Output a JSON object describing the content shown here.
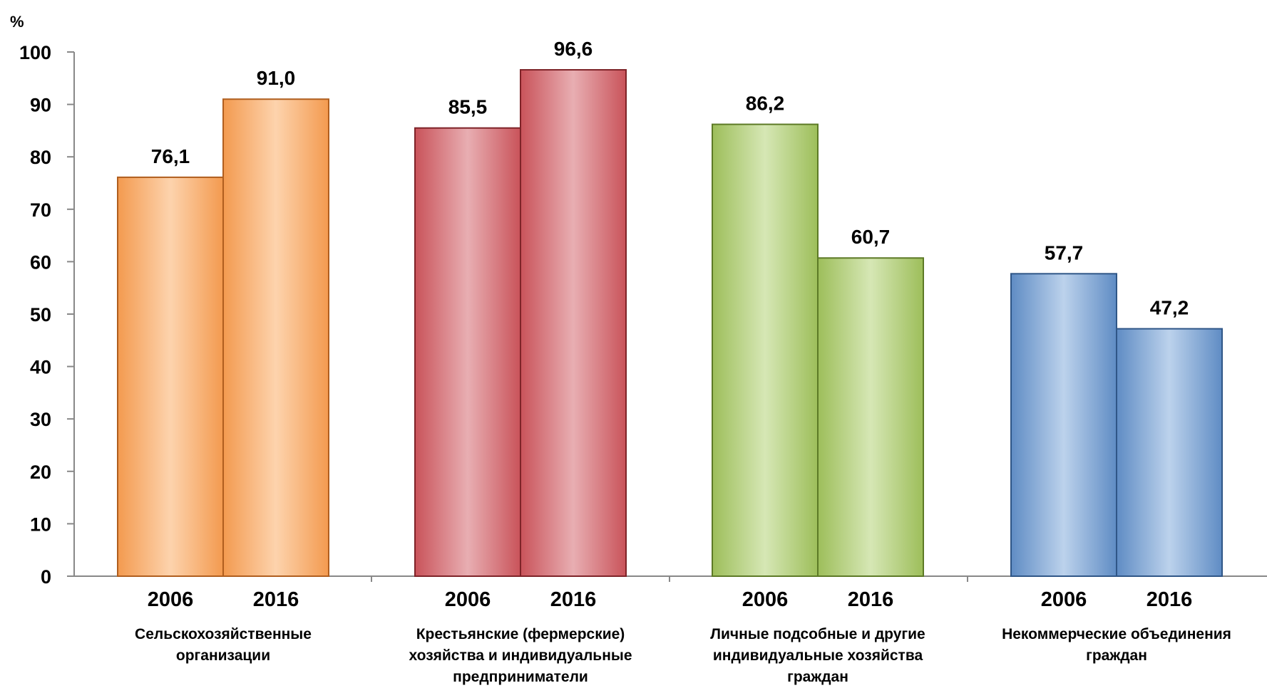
{
  "chart_data": {
    "type": "bar",
    "ylabel": "%",
    "ylim": [
      0,
      100
    ],
    "yticks": [
      0,
      10,
      20,
      30,
      40,
      50,
      60,
      70,
      80,
      90,
      100
    ],
    "grid": false,
    "legend": "none",
    "series_names": [
      "2006",
      "2016"
    ],
    "groups": [
      {
        "label_lines": [
          "Сельскохозяйственные",
          "организации"
        ],
        "values": [
          76.1,
          91.0
        ],
        "value_labels": [
          "76,1",
          "91,0"
        ],
        "color": "#F39A4F",
        "edge": "#B05E1E",
        "highlight": "#FDD3AD"
      },
      {
        "label_lines": [
          "Крестьянские (фермерские)",
          "хозяйства и индивидуальные",
          "предприниматели"
        ],
        "values": [
          85.5,
          96.6
        ],
        "value_labels": [
          "85,5",
          "96,6"
        ],
        "color": "#C9535A",
        "edge": "#7E2328",
        "highlight": "#E8AEB2"
      },
      {
        "label_lines": [
          "Личные подсобные и другие",
          "индивидуальные хозяйства",
          "граждан"
        ],
        "values": [
          86.2,
          60.7
        ],
        "value_labels": [
          "86,2",
          "60,7"
        ],
        "color": "#9DBE5A",
        "edge": "#5D7A26",
        "highlight": "#D6E7B5"
      },
      {
        "label_lines": [
          "Некоммерческие объединения",
          "граждан"
        ],
        "values": [
          57.7,
          47.2
        ],
        "value_labels": [
          "57,7",
          "47,2"
        ],
        "color": "#5F8CC4",
        "edge": "#2F5687",
        "highlight": "#BCD2EC"
      }
    ]
  }
}
